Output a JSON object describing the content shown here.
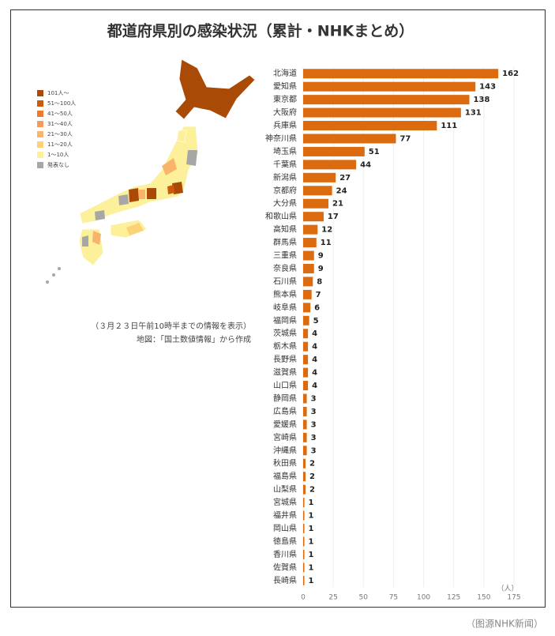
{
  "chart_data": {
    "type": "bar",
    "orientation": "horizontal",
    "title": "都道府県別の感染状況（累計・NHKまとめ）",
    "categories": [
      "北海道",
      "愛知県",
      "東京都",
      "大阪府",
      "兵庫県",
      "神奈川県",
      "埼玉県",
      "千葉県",
      "新潟県",
      "京都府",
      "大分県",
      "和歌山県",
      "高知県",
      "群馬県",
      "三重県",
      "奈良県",
      "石川県",
      "熊本県",
      "岐阜県",
      "福岡県",
      "茨城県",
      "栃木県",
      "長野県",
      "滋賀県",
      "山口県",
      "静岡県",
      "広島県",
      "愛媛県",
      "宮崎県",
      "沖縄県",
      "秋田県",
      "福島県",
      "山梨県",
      "宮城県",
      "福井県",
      "岡山県",
      "徳島県",
      "香川県",
      "佐賀県",
      "長崎県"
    ],
    "values": [
      162,
      143,
      138,
      131,
      111,
      77,
      51,
      44,
      27,
      24,
      21,
      17,
      12,
      11,
      9,
      9,
      8,
      7,
      6,
      5,
      4,
      4,
      4,
      4,
      4,
      3,
      3,
      3,
      3,
      3,
      2,
      2,
      2,
      1,
      1,
      1,
      1,
      1,
      1,
      1
    ],
    "color": "#dc6a0e",
    "xlim": [
      0,
      175
    ],
    "xticks": [
      0,
      25,
      50,
      75,
      100,
      125,
      150,
      175
    ],
    "grid": true,
    "x_unit": "（人）",
    "map_legend": [
      {
        "label": "101人～",
        "color": "#a94a06"
      },
      {
        "label": "51～100人",
        "color": "#cc5a0a"
      },
      {
        "label": "41～50人",
        "color": "#ef7a2c"
      },
      {
        "label": "31～40人",
        "color": "#f49a5c"
      },
      {
        "label": "21～30人",
        "color": "#f8b46a"
      },
      {
        "label": "11～20人",
        "color": "#fbd278"
      },
      {
        "label": "1～10人",
        "color": "#fdf09a"
      },
      {
        "label": "発表なし",
        "color": "#a7a7a7"
      }
    ],
    "notes": [
      "（３月２３日午前10時半までの情報を表示）",
      "地図：「国土数値情報」から作成"
    ],
    "source": "（图源NHK新闻）"
  }
}
